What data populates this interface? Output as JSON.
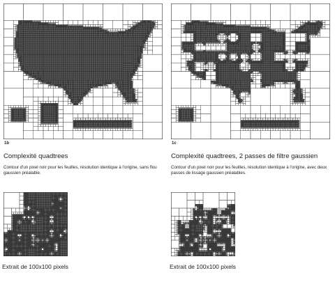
{
  "figures": [
    {
      "label": "1b",
      "title": "Complexité quadtrees",
      "description": "Contour d'un pixel noir pour les feuilles, résolution identique à l'origine, sans flou gaussien préalable.",
      "extract_caption": "Extrait de 100x100 pixels"
    },
    {
      "label": "1c",
      "title": "Complexité quadtrees, 2 passes de filtre gaussien",
      "description": "Contour d'un pixel noir pour les feuilles, résolution identique à l'origine, avec deux passes de lissage gaussien préalables.",
      "extract_caption": "Extrait de 100x100 pixels"
    }
  ]
}
